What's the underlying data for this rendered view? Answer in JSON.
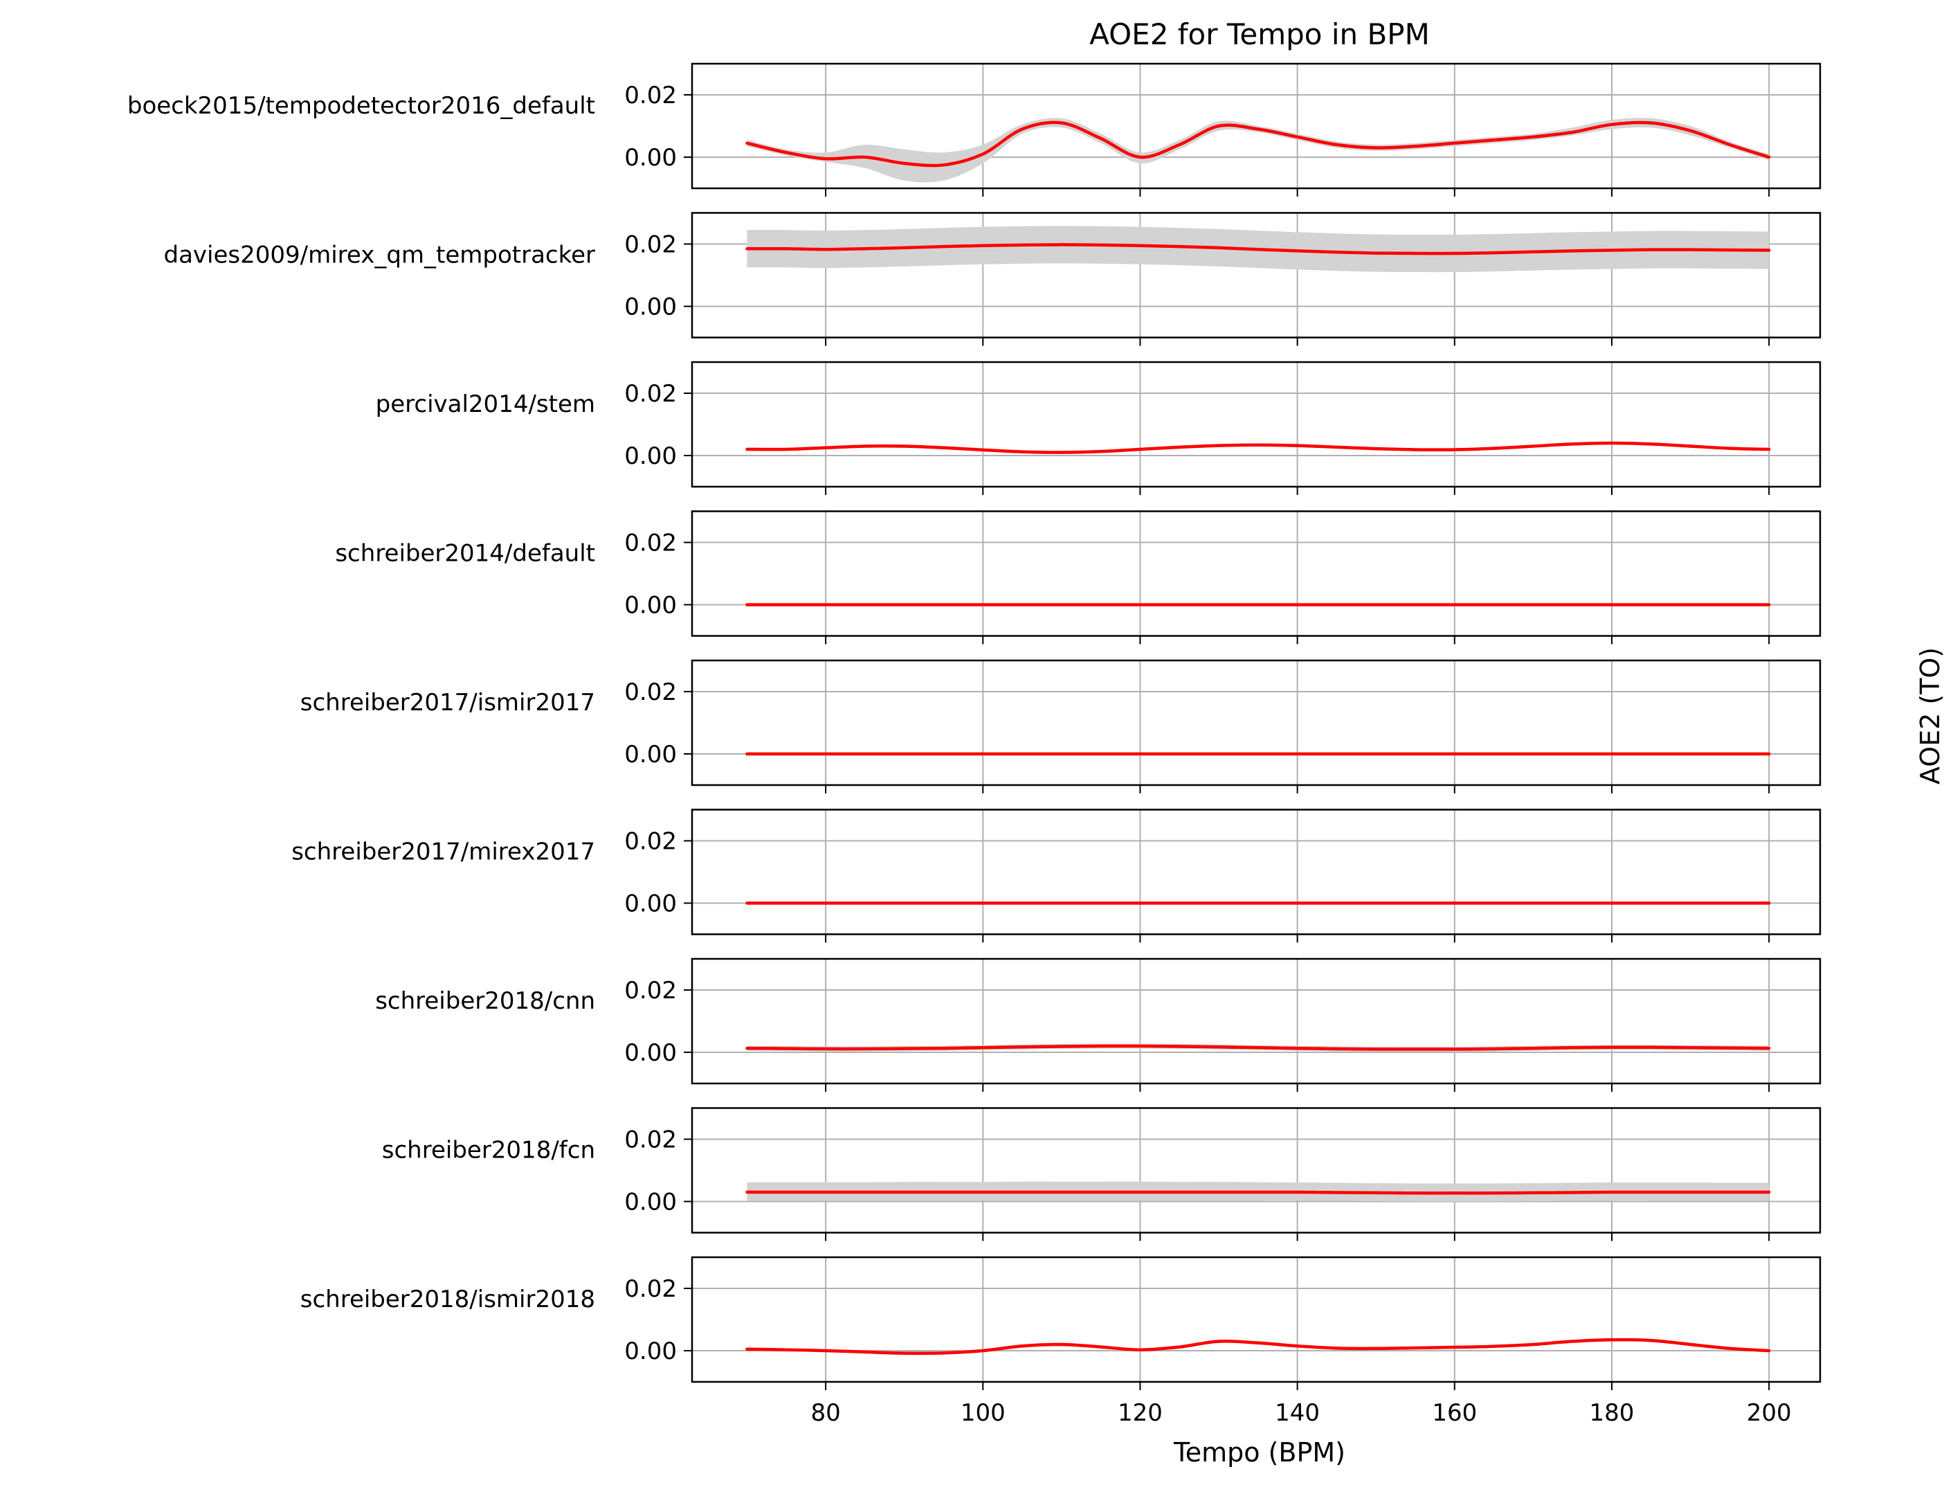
{
  "chart_data": {
    "type": "line",
    "title": "AOE2 for Tempo in BPM",
    "xlabel": "Tempo (BPM)",
    "ylabel": "AOE2 (TO)",
    "xlim": [
      63,
      206.5
    ],
    "ylim": [
      -0.01,
      0.03
    ],
    "xticks": [
      80,
      100,
      120,
      140,
      160,
      180,
      200
    ],
    "yticks": [
      0.0,
      0.02
    ],
    "ytick_labels": [
      "0.00",
      "0.02"
    ],
    "grid": true,
    "line_color": "#ff0000",
    "band_color": "#d3d3d3",
    "x": [
      70,
      75,
      80,
      85,
      90,
      95,
      100,
      105,
      110,
      115,
      120,
      125,
      130,
      135,
      140,
      145,
      150,
      155,
      160,
      165,
      170,
      175,
      180,
      185,
      190,
      195,
      200
    ],
    "series": [
      {
        "name": "boeck2015/tempodetector2016_default",
        "values": [
          0.0045,
          0.0015,
          -0.0005,
          0.0,
          -0.002,
          -0.0025,
          0.001,
          0.009,
          0.011,
          0.006,
          0.0,
          0.004,
          0.01,
          0.009,
          0.0065,
          0.004,
          0.003,
          0.0035,
          0.0045,
          0.0055,
          0.0065,
          0.008,
          0.0105,
          0.011,
          0.0085,
          0.004,
          0.0
        ],
        "lower": [
          0.0035,
          0.0005,
          -0.0015,
          -0.0035,
          -0.0075,
          -0.0075,
          -0.002,
          0.0075,
          0.0095,
          0.0045,
          -0.002,
          0.0025,
          0.0085,
          0.008,
          0.0055,
          0.003,
          0.002,
          0.0025,
          0.0035,
          0.0045,
          0.0055,
          0.007,
          0.009,
          0.0095,
          0.007,
          0.003,
          -0.001
        ],
        "upper": [
          0.0055,
          0.0025,
          0.0015,
          0.004,
          0.0025,
          0.0015,
          0.004,
          0.0105,
          0.0125,
          0.0075,
          0.0015,
          0.0055,
          0.0115,
          0.01,
          0.0075,
          0.005,
          0.004,
          0.0045,
          0.0055,
          0.0065,
          0.0075,
          0.0095,
          0.012,
          0.0125,
          0.01,
          0.005,
          0.001
        ]
      },
      {
        "name": "davies2009/mirex_qm_tempotracker",
        "values": [
          0.0185,
          0.0185,
          0.0183,
          0.0185,
          0.0188,
          0.0192,
          0.0195,
          0.0197,
          0.0198,
          0.0197,
          0.0195,
          0.0192,
          0.0188,
          0.0183,
          0.0178,
          0.0174,
          0.0171,
          0.017,
          0.017,
          0.0172,
          0.0175,
          0.0178,
          0.018,
          0.0182,
          0.0182,
          0.0181,
          0.018
        ],
        "lower": [
          0.0125,
          0.0125,
          0.0123,
          0.0125,
          0.0128,
          0.0132,
          0.0135,
          0.0137,
          0.0138,
          0.0137,
          0.0135,
          0.0132,
          0.0128,
          0.0123,
          0.0118,
          0.0114,
          0.0111,
          0.011,
          0.011,
          0.0112,
          0.0115,
          0.0118,
          0.012,
          0.0122,
          0.0122,
          0.0121,
          0.012
        ],
        "upper": [
          0.0245,
          0.0245,
          0.0243,
          0.0245,
          0.0248,
          0.0252,
          0.0255,
          0.0257,
          0.0258,
          0.0257,
          0.0255,
          0.0252,
          0.0248,
          0.0243,
          0.0238,
          0.0234,
          0.0231,
          0.023,
          0.023,
          0.0232,
          0.0235,
          0.0238,
          0.024,
          0.0242,
          0.0242,
          0.0241,
          0.024
        ]
      },
      {
        "name": "percival2014/stem",
        "values": [
          0.002,
          0.002,
          0.0025,
          0.003,
          0.003,
          0.0025,
          0.0018,
          0.0012,
          0.001,
          0.0013,
          0.002,
          0.0027,
          0.0032,
          0.0034,
          0.0032,
          0.0027,
          0.0022,
          0.0019,
          0.0019,
          0.0023,
          0.003,
          0.0037,
          0.004,
          0.0037,
          0.003,
          0.0023,
          0.002
        ],
        "lower": [
          0.0015,
          0.0015,
          0.002,
          0.0025,
          0.0025,
          0.002,
          0.0013,
          0.0007,
          0.0005,
          0.0008,
          0.0015,
          0.0022,
          0.0027,
          0.0029,
          0.0027,
          0.0022,
          0.0017,
          0.0014,
          0.0014,
          0.0018,
          0.0025,
          0.0032,
          0.0035,
          0.0032,
          0.0025,
          0.0018,
          0.0015
        ],
        "upper": [
          0.0025,
          0.0025,
          0.003,
          0.0035,
          0.0035,
          0.003,
          0.0023,
          0.0017,
          0.0015,
          0.0018,
          0.0025,
          0.0032,
          0.0037,
          0.0039,
          0.0037,
          0.0032,
          0.0027,
          0.0024,
          0.0024,
          0.0028,
          0.0035,
          0.0042,
          0.0045,
          0.0042,
          0.0035,
          0.0028,
          0.0025
        ]
      },
      {
        "name": "schreiber2014/default",
        "values": [
          0,
          0,
          0,
          0,
          0,
          0,
          0,
          0,
          0,
          0,
          0,
          0,
          0,
          0,
          0,
          0,
          0,
          0,
          0,
          0,
          0,
          0,
          0,
          0,
          0,
          0,
          0
        ],
        "lower": [
          0,
          0,
          0,
          0,
          0,
          0,
          0,
          0,
          0,
          0,
          0,
          0,
          0,
          0,
          0,
          0,
          0,
          0,
          0,
          0,
          0,
          0,
          0,
          0,
          0,
          0,
          0
        ],
        "upper": [
          0,
          0,
          0,
          0,
          0,
          0,
          0,
          0,
          0,
          0,
          0,
          0,
          0,
          0,
          0,
          0,
          0,
          0,
          0,
          0,
          0,
          0,
          0,
          0,
          0,
          0,
          0
        ]
      },
      {
        "name": "schreiber2017/ismir2017",
        "values": [
          0,
          0,
          0,
          0,
          0,
          0,
          0,
          0,
          0,
          0,
          0,
          0,
          0,
          0,
          0,
          0,
          0,
          0,
          0,
          0,
          0,
          0,
          0,
          0,
          0,
          0,
          0
        ],
        "lower": [
          0,
          0,
          0,
          0,
          0,
          0,
          0,
          0,
          0,
          0,
          0,
          0,
          0,
          0,
          0,
          0,
          0,
          0,
          0,
          0,
          0,
          0,
          0,
          0,
          0,
          0,
          0
        ],
        "upper": [
          0,
          0,
          0,
          0,
          0,
          0,
          0,
          0,
          0,
          0,
          0,
          0,
          0,
          0,
          0,
          0,
          0,
          0,
          0,
          0,
          0,
          0,
          0,
          0,
          0,
          0,
          0
        ]
      },
      {
        "name": "schreiber2017/mirex2017",
        "values": [
          0,
          0,
          0,
          0,
          0,
          0,
          0,
          0,
          0,
          0,
          0,
          0,
          0,
          0,
          0,
          0,
          0,
          0,
          0,
          0,
          0,
          0,
          0,
          0,
          0,
          0,
          0
        ],
        "lower": [
          0,
          0,
          0,
          0,
          0,
          0,
          0,
          0,
          0,
          0,
          0,
          0,
          0,
          0,
          0,
          0,
          0,
          0,
          0,
          0,
          0,
          0,
          0,
          0,
          0,
          0,
          0
        ],
        "upper": [
          0,
          0,
          0,
          0,
          0,
          0,
          0,
          0,
          0,
          0,
          0,
          0,
          0,
          0,
          0,
          0,
          0,
          0,
          0,
          0,
          0,
          0,
          0,
          0,
          0,
          0,
          0
        ]
      },
      {
        "name": "schreiber2018/cnn",
        "values": [
          0.0013,
          0.0012,
          0.0011,
          0.0011,
          0.0012,
          0.0013,
          0.0015,
          0.0017,
          0.0019,
          0.002,
          0.002,
          0.0019,
          0.0017,
          0.0015,
          0.0013,
          0.0011,
          0.001,
          0.001,
          0.001,
          0.0011,
          0.0013,
          0.0015,
          0.0016,
          0.0016,
          0.0015,
          0.0014,
          0.0013
        ],
        "lower": [
          0.0005,
          0.0004,
          0.0003,
          0.0003,
          0.0004,
          0.0005,
          0.0007,
          0.0009,
          0.0011,
          0.0012,
          0.0012,
          0.0011,
          0.0009,
          0.0007,
          0.0005,
          0.0003,
          0.0002,
          0.0002,
          0.0002,
          0.0003,
          0.0005,
          0.0007,
          0.0008,
          0.0008,
          0.0007,
          0.0006,
          0.0005
        ],
        "upper": [
          0.0021,
          0.002,
          0.0019,
          0.0019,
          0.002,
          0.0021,
          0.0023,
          0.0025,
          0.0027,
          0.0028,
          0.0028,
          0.0027,
          0.0025,
          0.0023,
          0.0021,
          0.0019,
          0.0018,
          0.0018,
          0.0018,
          0.0019,
          0.0021,
          0.0023,
          0.0024,
          0.0024,
          0.0023,
          0.0022,
          0.0021
        ]
      },
      {
        "name": "schreiber2018/fcn",
        "values": [
          0.003,
          0.003,
          0.003,
          0.003,
          0.003,
          0.003,
          0.003,
          0.003,
          0.003,
          0.003,
          0.003,
          0.003,
          0.003,
          0.003,
          0.003,
          0.0029,
          0.0028,
          0.0027,
          0.0027,
          0.0027,
          0.0028,
          0.0029,
          0.003,
          0.003,
          0.003,
          0.003,
          0.003
        ],
        "lower": [
          0.0003,
          0.0003,
          0.0003,
          0.0003,
          0.0003,
          0.0003,
          0.0003,
          0.0003,
          0.0003,
          0.0003,
          0.0003,
          0.0003,
          0.0003,
          0.0003,
          0.0003,
          0.0002,
          0.0001,
          0.0,
          0.0,
          0.0,
          0.0001,
          0.0002,
          0.0003,
          0.0003,
          0.0003,
          0.0003,
          0.0003
        ],
        "upper": [
          0.0062,
          0.0062,
          0.0062,
          0.0062,
          0.0063,
          0.0063,
          0.0063,
          0.0064,
          0.0064,
          0.0064,
          0.0064,
          0.0063,
          0.0063,
          0.0062,
          0.0061,
          0.006,
          0.0059,
          0.0058,
          0.0058,
          0.0058,
          0.0059,
          0.006,
          0.0061,
          0.0061,
          0.0061,
          0.006,
          0.006
        ]
      },
      {
        "name": "schreiber2018/ismir2018",
        "values": [
          0.0005,
          0.0003,
          0.0,
          -0.0004,
          -0.0008,
          -0.0007,
          0.0,
          0.0015,
          0.002,
          0.0012,
          0.0003,
          0.0012,
          0.003,
          0.0025,
          0.0015,
          0.0008,
          0.0007,
          0.0009,
          0.0011,
          0.0014,
          0.002,
          0.003,
          0.0035,
          0.0033,
          0.002,
          0.0007,
          0.0
        ],
        "lower": [
          0.0002,
          0.0,
          -0.0004,
          -0.001,
          -0.0014,
          -0.0013,
          -0.0005,
          0.001,
          0.0015,
          0.0008,
          0.0,
          0.0008,
          0.0025,
          0.0021,
          0.0011,
          0.0005,
          0.0004,
          0.0006,
          0.0008,
          0.0011,
          0.0016,
          0.0025,
          0.003,
          0.0028,
          0.0015,
          0.0003,
          -0.0003
        ],
        "upper": [
          0.0008,
          0.0006,
          0.0004,
          0.0002,
          -0.0002,
          -0.0001,
          0.0005,
          0.002,
          0.0025,
          0.0016,
          0.0006,
          0.0016,
          0.0035,
          0.0029,
          0.0019,
          0.0011,
          0.001,
          0.0012,
          0.0014,
          0.0017,
          0.0024,
          0.0035,
          0.004,
          0.0038,
          0.0025,
          0.0011,
          0.0003
        ]
      }
    ]
  }
}
